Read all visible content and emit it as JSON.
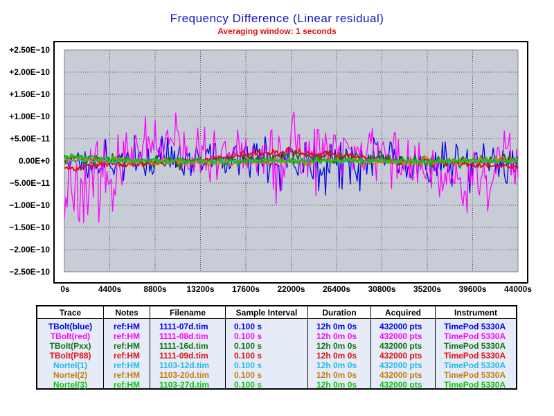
{
  "chart_data": {
    "type": "line",
    "title": "Frequency Difference  (Linear residual)",
    "subtitle": "Averaging window: 1 seconds",
    "xlabel": "",
    "ylabel": "",
    "xlim": [
      0,
      44000
    ],
    "ylim": [
      -2.5e-10,
      2.5e-10
    ],
    "grid": true,
    "x_ticks": [
      "0s",
      "4400s",
      "8800s",
      "13200s",
      "17600s",
      "22000s",
      "26400s",
      "30800s",
      "35200s",
      "39600s",
      "44000s"
    ],
    "y_ticks": [
      "+2.50E−10",
      "+2.00E−10",
      "+1.50E−10",
      "+1.00E−10",
      "+5.00E−11",
      "0.00E+0",
      "−5.00E−11",
      "−1.00E−10",
      "−1.50E−10",
      "−2.00E−10",
      "−2.50E−10"
    ],
    "series": [
      {
        "name": "TBolt(blue)",
        "color": "#0000e8",
        "noise": 3.8e-11,
        "seed": 11,
        "envelope": [
          [
            0,
            2e-11
          ],
          [
            -5e-12,
            3e-11
          ],
          [
            5e-12,
            3.8e-11
          ],
          [
            5e-12,
            4e-11
          ],
          [
            0,
            4.5e-11
          ],
          [
            0,
            5e-11
          ],
          [
            0,
            4.5e-11
          ],
          [
            0,
            3.5e-11
          ],
          [
            -5e-12,
            3.5e-11
          ],
          [
            0,
            4e-11
          ],
          [
            -1e-11,
            3.5e-11
          ]
        ]
      },
      {
        "name": "TBolt(red)",
        "color": "#ff00ff",
        "noise": 5.5e-11,
        "seed": 23,
        "envelope": [
          [
            -6e-11,
            8e-11
          ],
          [
            -3e-11,
            6e-11
          ],
          [
            3e-11,
            5e-11
          ],
          [
            1e-11,
            4e-11
          ],
          [
            0,
            5e-11
          ],
          [
            3e-11,
            7e-11
          ],
          [
            2e-11,
            5e-11
          ],
          [
            2e-11,
            5e-11
          ],
          [
            -3e-11,
            5e-11
          ],
          [
            -4e-11,
            5e-11
          ],
          [
            0,
            6e-11
          ]
        ]
      },
      {
        "name": "TBolt(Pxx)",
        "color": "#107010",
        "noise": 8e-12,
        "seed": 37,
        "envelope": [
          [
            5e-12,
            1e-11
          ],
          [
            0,
            1e-11
          ],
          [
            0,
            1e-11
          ],
          [
            0,
            1e-11
          ],
          [
            0,
            1e-11
          ],
          [
            1e-11,
            1e-11
          ],
          [
            1e-11,
            1.2e-11
          ],
          [
            5e-12,
            1e-11
          ],
          [
            0,
            1e-11
          ],
          [
            0,
            1e-11
          ],
          [
            0,
            1e-11
          ]
        ]
      },
      {
        "name": "TBolt(P88)",
        "color": "#e01010",
        "noise": 5e-12,
        "seed": 41,
        "envelope": [
          [
            -2e-11,
            6e-12
          ],
          [
            -5e-12,
            5e-12
          ],
          [
            -5e-12,
            5e-12
          ],
          [
            0,
            5e-12
          ],
          [
            1.5e-11,
            5e-12
          ],
          [
            2e-11,
            6e-12
          ],
          [
            1.5e-11,
            5e-12
          ],
          [
            0,
            5e-12
          ],
          [
            0,
            5e-12
          ],
          [
            -1e-11,
            5e-12
          ],
          [
            -1.5e-11,
            5e-12
          ]
        ]
      },
      {
        "name": "Nortel(1)",
        "color": "#20b8f0",
        "noise": 4e-12,
        "seed": 53,
        "envelope": [
          [
            3e-12,
            4e-12
          ],
          [
            0,
            4e-12
          ],
          [
            0,
            4e-12
          ],
          [
            0,
            4e-12
          ],
          [
            0,
            4e-12
          ],
          [
            0,
            4e-12
          ],
          [
            0,
            4e-12
          ],
          [
            0,
            4e-12
          ],
          [
            0,
            4e-12
          ],
          [
            0,
            4e-12
          ],
          [
            0,
            4e-12
          ]
        ]
      },
      {
        "name": "Nortel(2)",
        "color": "#c08010",
        "noise": 6e-12,
        "seed": 67,
        "envelope": [
          [
            5e-12,
            6e-12
          ],
          [
            0,
            6e-12
          ],
          [
            -3e-12,
            6e-12
          ],
          [
            -5e-12,
            6e-12
          ],
          [
            -5e-12,
            6e-12
          ],
          [
            -3e-12,
            6e-12
          ],
          [
            0,
            6e-12
          ],
          [
            -5e-12,
            6e-12
          ],
          [
            0,
            6e-12
          ],
          [
            0,
            6e-12
          ],
          [
            0,
            6e-12
          ]
        ]
      },
      {
        "name": "Nortel(3)",
        "color": "#10c010",
        "noise": 5e-12,
        "seed": 79,
        "envelope": [
          [
            1e-11,
            5e-12
          ],
          [
            5e-12,
            5e-12
          ],
          [
            0,
            5e-12
          ],
          [
            0,
            5e-12
          ],
          [
            0,
            5e-12
          ],
          [
            0,
            5e-12
          ],
          [
            0,
            5e-12
          ],
          [
            0,
            5e-12
          ],
          [
            0,
            5e-12
          ],
          [
            0,
            5e-12
          ],
          [
            0,
            5e-12
          ]
        ]
      }
    ]
  },
  "legend_table": {
    "headers": {
      "trace": "Trace",
      "notes": "Notes",
      "filename": "Filename",
      "sample_interval": "Sample Interval",
      "duration": "Duration",
      "acquired": "Acquired",
      "instrument": "Instrument"
    },
    "rows": [
      {
        "trace": "TBolt(blue)",
        "notes": "ref:HM",
        "filename": "1111-07d.tim",
        "sample_interval": "0.100 s",
        "duration": "12h 0m 0s",
        "acquired": "432000 pts",
        "instrument": "TimePod 5330A",
        "color": "#0000e8"
      },
      {
        "trace": "TBolt(red)",
        "notes": "ref:HM",
        "filename": "1111-08d.tim",
        "sample_interval": "0.100 s",
        "duration": "12h 0m 0s",
        "acquired": "432000 pts",
        "instrument": "TimePod 5330A",
        "color": "#ff00ff"
      },
      {
        "trace": "TBolt(Pxx)",
        "notes": "ref:HM",
        "filename": "1111-16d.tim",
        "sample_interval": "0.100 s",
        "duration": "12h 0m 0s",
        "acquired": "432000 pts",
        "instrument": "TimePod 5330A",
        "color": "#107010"
      },
      {
        "trace": "TBolt(P88)",
        "notes": "ref:HM",
        "filename": "1111-09d.tim",
        "sample_interval": "0.100 s",
        "duration": "12h 0m 0s",
        "acquired": "432000 pts",
        "instrument": "TimePod 5330A",
        "color": "#e01010"
      },
      {
        "trace": "Nortel(1)",
        "notes": "ref:HM",
        "filename": "1103-12d.tim",
        "sample_interval": "0.100 s",
        "duration": "12h 0m 0s",
        "acquired": "432000 pts",
        "instrument": "TimePod 5330A",
        "color": "#20b8f0"
      },
      {
        "trace": "Nortel(2)",
        "notes": "ref:HM",
        "filename": "1103-20d.tim",
        "sample_interval": "0.100 s",
        "duration": "12h 0m 0s",
        "acquired": "432000 pts",
        "instrument": "TimePod 5330A",
        "color": "#c08010"
      },
      {
        "trace": "Nortel(3)",
        "notes": "ref:HM",
        "filename": "1103-27d.tim",
        "sample_interval": "0.100 s",
        "duration": "12h 0m 0s",
        "acquired": "432000 pts",
        "instrument": "TimePod 5330A",
        "color": "#10c010"
      }
    ]
  },
  "colors": {
    "plot_background": "#c8ccd6",
    "title": "#1414c8",
    "subtitle": "#e01010",
    "zero_label": "#1414c8",
    "legend_background": "#e6ecf7"
  }
}
